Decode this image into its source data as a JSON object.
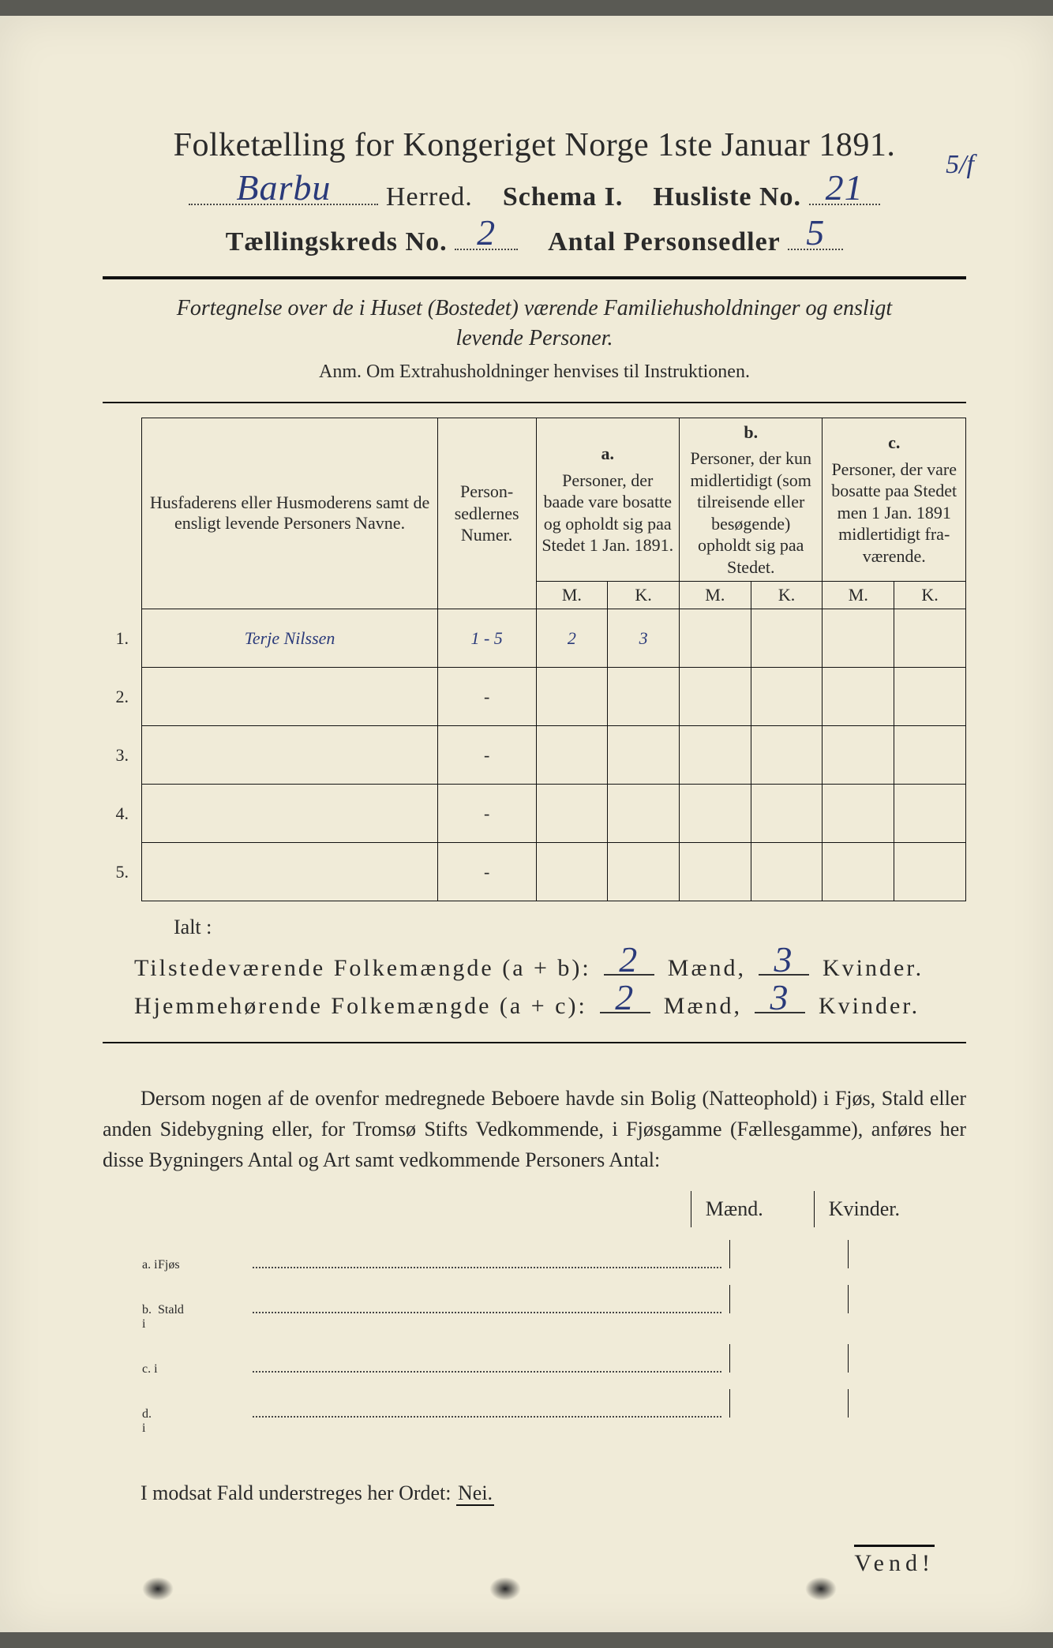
{
  "header": {
    "title": "Folketælling for Kongeriget Norge 1ste Januar 1891.",
    "herred_value": "Barbu",
    "herred_label": "Herred.",
    "schema_label": "Schema I.",
    "husliste_label": "Husliste No.",
    "husliste_value": "21",
    "annotation": "5/f",
    "kreds_label": "Tællingskreds No.",
    "kreds_value": "2",
    "antal_label": "Antal Personsedler",
    "antal_value": "5"
  },
  "subtitle": {
    "line1": "Fortegnelse over de i Huset (Bostedet) værende Familiehusholdninger og ensligt",
    "line2": "levende Personer.",
    "anm": "Anm.  Om Extrahusholdninger henvises til Instruktionen."
  },
  "table": {
    "name_header": "Husfaderens eller Husmode­rens samt de ensligt levende Personers Navne.",
    "sedler_header": "Person­sedler­nes Numer.",
    "col_a": {
      "letter": "a.",
      "text": "Personer, der baade vare bo­satte og opholdt sig paa Stedet 1 Jan. 1891."
    },
    "col_b": {
      "letter": "b.",
      "text": "Personer, der kun midler­tidigt (som tilreisende eller besøgende) opholdt sig paa Stedet."
    },
    "col_c": {
      "letter": "c.",
      "text": "Personer, der vare bosatte paa Stedet men 1 Jan. 1891 midler­tidigt fra­værende."
    },
    "m": "M.",
    "k": "K.",
    "rows": [
      {
        "num": "1.",
        "name": "Terje Nilssen",
        "sedler": "1 - 5",
        "a_m": "2",
        "a_k": "3",
        "b_m": "",
        "b_k": "",
        "c_m": "",
        "c_k": ""
      },
      {
        "num": "2.",
        "name": "",
        "sedler": "-",
        "a_m": "",
        "a_k": "",
        "b_m": "",
        "b_k": "",
        "c_m": "",
        "c_k": ""
      },
      {
        "num": "3.",
        "name": "",
        "sedler": "-",
        "a_m": "",
        "a_k": "",
        "b_m": "",
        "b_k": "",
        "c_m": "",
        "c_k": ""
      },
      {
        "num": "4.",
        "name": "",
        "sedler": "-",
        "a_m": "",
        "a_k": "",
        "b_m": "",
        "b_k": "",
        "c_m": "",
        "c_k": ""
      },
      {
        "num": "5.",
        "name": "",
        "sedler": "-",
        "a_m": "",
        "a_k": "",
        "b_m": "",
        "b_k": "",
        "c_m": "",
        "c_k": ""
      }
    ],
    "ialt": "Ialt :"
  },
  "totals": {
    "line1_label": "Tilstedeværende Folkemængde (a + b):",
    "line1_m": "2",
    "line1_k": "3",
    "line2_label": "Hjemmehørende Folkemængde (a + c):",
    "line2_m": "2",
    "line2_k": "3",
    "maend": "Mænd,",
    "kvinder": "Kvinder."
  },
  "paragraph": "Dersom nogen af de ovenfor medregnede Beboere havde sin Bolig (Natte­ophold) i Fjøs, Stald eller anden Sidebygning eller, for Tromsø Stifts Ved­kommende, i Fjøsgamme (Fællesgamme), anføres her disse Bygningers Antal og Art samt vedkommende Personers Antal:",
  "bolig": {
    "maend": "Mænd.",
    "kvinder": "Kvinder.",
    "rows": [
      {
        "lab": "a.  i",
        "typ": "Fjøs"
      },
      {
        "lab": "b.  i",
        "typ": "Stald"
      },
      {
        "lab": "c.  i",
        "typ": ""
      },
      {
        "lab": "d.  i",
        "typ": ""
      }
    ]
  },
  "nei": {
    "text": "I modsat Fald understreges her Ordet:",
    "word": "Nei."
  },
  "vend": "Vend!",
  "colors": {
    "paper": "#f0ebd8",
    "ink": "#2a2a2a",
    "handwriting": "#2a3a7a",
    "background": "#5a5a54"
  }
}
